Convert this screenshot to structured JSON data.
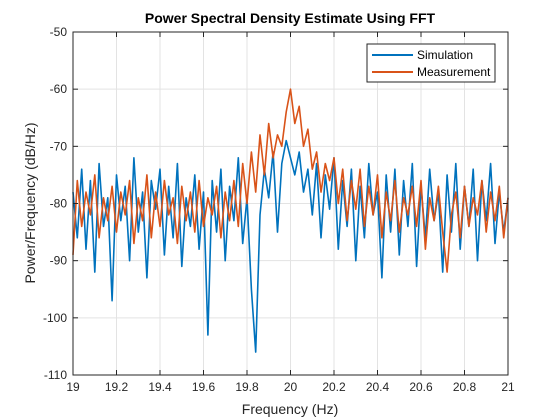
{
  "chart_data": {
    "type": "line",
    "title": "Power Spectral Density Estimate Using FFT",
    "xlabel": "Frequency (Hz)",
    "ylabel": "Power/Frequency (dB/Hz)",
    "xlim": [
      19,
      21
    ],
    "ylim": [
      -110,
      -50
    ],
    "xticks": [
      19,
      19.2,
      19.4,
      19.6,
      19.8,
      20,
      20.2,
      20.4,
      20.6,
      20.8,
      21
    ],
    "xtick_labels": [
      "19",
      "19.2",
      "19.4",
      "19.6",
      "19.8",
      "20",
      "20.2",
      "20.4",
      "20.6",
      "20.8",
      "21"
    ],
    "yticks": [
      -110,
      -100,
      -90,
      -80,
      -70,
      -60,
      -50
    ],
    "ytick_labels": [
      "-110",
      "-100",
      "-90",
      "-80",
      "-70",
      "-60",
      "-50"
    ],
    "grid": true,
    "legend": {
      "placement": "top-right"
    },
    "series": [
      {
        "name": "Simulation",
        "color": "#0072bd",
        "x": [
          19.0,
          19.02,
          19.04,
          19.06,
          19.08,
          19.1,
          19.12,
          19.14,
          19.16,
          19.18,
          19.2,
          19.22,
          19.24,
          19.26,
          19.28,
          19.3,
          19.32,
          19.34,
          19.36,
          19.38,
          19.4,
          19.42,
          19.44,
          19.46,
          19.48,
          19.5,
          19.52,
          19.54,
          19.56,
          19.58,
          19.6,
          19.62,
          19.64,
          19.66,
          19.68,
          19.7,
          19.72,
          19.74,
          19.76,
          19.78,
          19.8,
          19.82,
          19.84,
          19.86,
          19.88,
          19.9,
          19.92,
          19.94,
          19.96,
          19.98,
          20.0,
          20.02,
          20.04,
          20.06,
          20.08,
          20.1,
          20.12,
          20.14,
          20.16,
          20.18,
          20.2,
          20.22,
          20.24,
          20.26,
          20.28,
          20.3,
          20.32,
          20.34,
          20.36,
          20.38,
          20.4,
          20.42,
          20.44,
          20.46,
          20.48,
          20.5,
          20.52,
          20.54,
          20.56,
          20.58,
          20.6,
          20.62,
          20.64,
          20.66,
          20.68,
          20.7,
          20.72,
          20.74,
          20.76,
          20.78,
          20.8,
          20.82,
          20.84,
          20.86,
          20.88,
          20.9,
          20.92,
          20.94,
          20.96,
          20.98,
          21.0
        ],
        "y": [
          -78,
          -86,
          -74,
          -88,
          -76,
          -92,
          -73,
          -84,
          -79,
          -97,
          -75,
          -83,
          -77,
          -90,
          -72,
          -85,
          -78,
          -93,
          -76,
          -81,
          -74,
          -89,
          -77,
          -86,
          -73,
          -91,
          -79,
          -84,
          -75,
          -88,
          -78,
          -103,
          -76,
          -85,
          -74,
          -90,
          -77,
          -83,
          -72,
          -87,
          -79,
          -95,
          -106,
          -82,
          -74,
          -79,
          -71,
          -85,
          -73,
          -69,
          -72,
          -75,
          -71,
          -78,
          -74,
          -82,
          -73,
          -86,
          -75,
          -81,
          -72,
          -88,
          -76,
          -84,
          -74,
          -90,
          -77,
          -86,
          -73,
          -82,
          -78,
          -93,
          -75,
          -85,
          -74,
          -89,
          -76,
          -84,
          -73,
          -91,
          -77,
          -86,
          -74,
          -83,
          -78,
          -92,
          -75,
          -85,
          -73,
          -88,
          -77,
          -84,
          -74,
          -90,
          -76,
          -83,
          -73,
          -87,
          -78,
          -85,
          -79
        ]
      },
      {
        "name": "Measurement",
        "color": "#d95319",
        "x": [
          19.0,
          19.02,
          19.04,
          19.06,
          19.08,
          19.1,
          19.12,
          19.14,
          19.16,
          19.18,
          19.2,
          19.22,
          19.24,
          19.26,
          19.28,
          19.3,
          19.32,
          19.34,
          19.36,
          19.38,
          19.4,
          19.42,
          19.44,
          19.46,
          19.48,
          19.5,
          19.52,
          19.54,
          19.56,
          19.58,
          19.6,
          19.62,
          19.64,
          19.66,
          19.68,
          19.7,
          19.72,
          19.74,
          19.76,
          19.78,
          19.8,
          19.82,
          19.84,
          19.86,
          19.88,
          19.9,
          19.92,
          19.94,
          19.96,
          19.98,
          20.0,
          20.02,
          20.04,
          20.06,
          20.08,
          20.1,
          20.12,
          20.14,
          20.16,
          20.18,
          20.2,
          20.22,
          20.24,
          20.26,
          20.28,
          20.3,
          20.32,
          20.34,
          20.36,
          20.38,
          20.4,
          20.42,
          20.44,
          20.46,
          20.48,
          20.5,
          20.52,
          20.54,
          20.56,
          20.58,
          20.6,
          20.62,
          20.64,
          20.66,
          20.68,
          20.7,
          20.72,
          20.74,
          20.76,
          20.78,
          20.8,
          20.82,
          20.84,
          20.86,
          20.88,
          20.9,
          20.92,
          20.94,
          20.96,
          20.98,
          21.0
        ],
        "y": [
          -89,
          -76,
          -84,
          -78,
          -82,
          -75,
          -86,
          -79,
          -83,
          -77,
          -85,
          -78,
          -82,
          -76,
          -87,
          -79,
          -83,
          -75,
          -86,
          -78,
          -84,
          -76,
          -82,
          -79,
          -87,
          -77,
          -83,
          -78,
          -85,
          -76,
          -84,
          -79,
          -82,
          -77,
          -86,
          -78,
          -83,
          -76,
          -84,
          -73,
          -80,
          -71,
          -78,
          -68,
          -75,
          -66,
          -72,
          -68,
          -70,
          -64,
          -60,
          -66,
          -63,
          -70,
          -67,
          -74,
          -71,
          -78,
          -73,
          -76,
          -72,
          -80,
          -74,
          -83,
          -76,
          -81,
          -74,
          -84,
          -77,
          -82,
          -75,
          -86,
          -78,
          -83,
          -76,
          -85,
          -79,
          -82,
          -77,
          -84,
          -76,
          -88,
          -79,
          -83,
          -77,
          -85,
          -92,
          -82,
          -78,
          -86,
          -77,
          -84,
          -79,
          -82,
          -76,
          -85,
          -78,
          -83,
          -77,
          -86,
          -79
        ]
      }
    ]
  }
}
